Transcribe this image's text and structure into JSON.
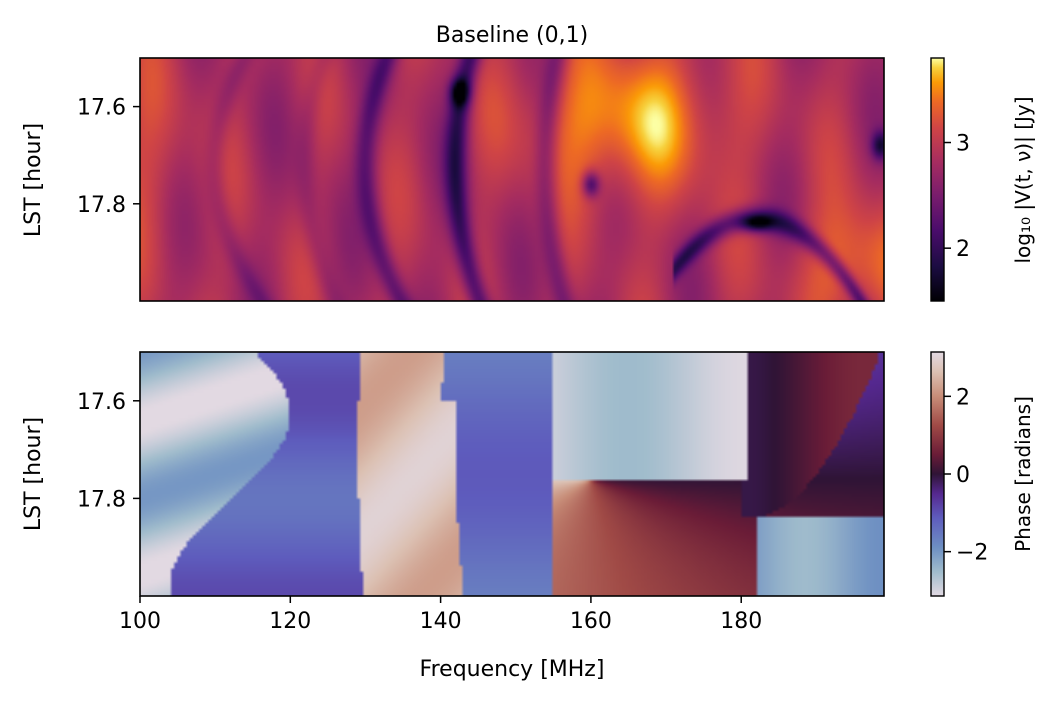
{
  "chart_data": [
    {
      "type": "heatmap",
      "title": "Baseline (0,1)",
      "xlabel": "",
      "ylabel": "LST [hour]",
      "x_range": [
        100,
        199
      ],
      "ylim": [
        17.5,
        18.0
      ],
      "y_ticks": [
        17.6,
        17.8
      ],
      "y_tick_labels": [
        "17.6",
        "17.8"
      ],
      "x_tick_labels_visible": false,
      "colormap": "inferno",
      "colorbar": {
        "label": "log₁₀ |V(t, ν)| [Jy]",
        "range": [
          1.5,
          3.8
        ],
        "ticks": [
          2,
          3
        ],
        "tick_labels": [
          "2",
          "3"
        ]
      },
      "field_description": "mostly bright (log10 |V| ~ 2.8-3.6) with dark curved nulls near 129-131, 141-143 and 153-155 MHz, dark point-like minima near (142.5, 17.57), (160, 17.76), (198.5, 17.68), and a dark arc from 172 to 198 MHz near 17.8-17.85 hour",
      "peaks": [
        {
          "freq": 165,
          "lst": 17.63,
          "value": 3.75
        },
        {
          "freq": 196,
          "lst": 17.93,
          "value": 3.6
        },
        {
          "freq": 100,
          "lst": 17.7,
          "value": 3.2
        }
      ]
    },
    {
      "type": "heatmap",
      "title": "",
      "xlabel": "Frequency [MHz]",
      "ylabel": "LST [hour]",
      "x_range": [
        100,
        199
      ],
      "ylim": [
        17.5,
        18.0
      ],
      "x_ticks": [
        100,
        120,
        140,
        160,
        180
      ],
      "x_tick_labels": [
        "100",
        "120",
        "140",
        "160",
        "180"
      ],
      "y_ticks": [
        17.6,
        17.8
      ],
      "y_tick_labels": [
        "17.6",
        "17.8"
      ],
      "colormap": "twilight",
      "colorbar": {
        "label": "Phase [radians]",
        "range": [
          -3.14159,
          3.14159
        ],
        "ticks": [
          -2,
          0,
          2
        ],
        "tick_labels": [
          "−2",
          "0",
          "2"
        ]
      },
      "field_description": "phase wraps across frequency: light-blue near 100 MHz, purple bands near 110-128 MHz and 145-155 MHz, pale white-peach band near 129-142 MHz, a phase singularity near (160, 17.76) with dark-red to peach wedge below it, and a dark-red lens region from 180 to 198 MHz above 17.84 hour"
    }
  ]
}
